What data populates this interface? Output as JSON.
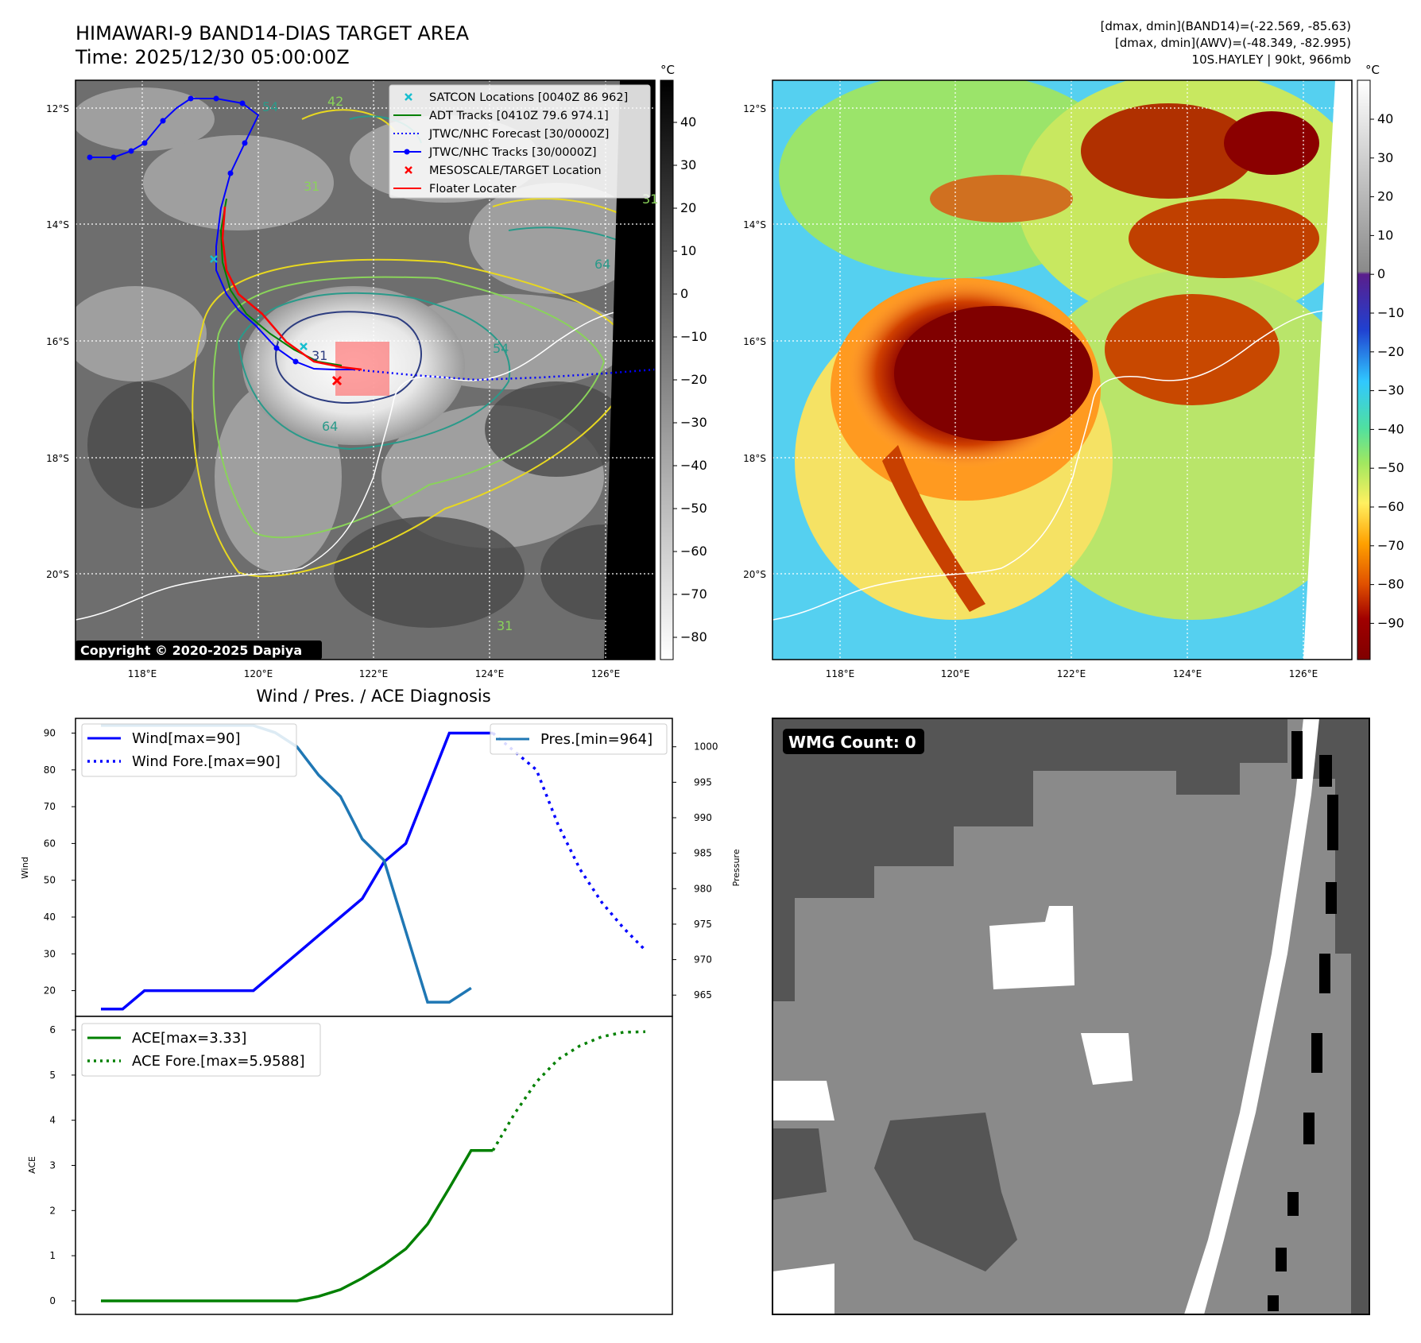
{
  "header": {
    "title": "HIMAWARI-9 BAND14-DIAS TARGET AREA",
    "time": "Time: 2025/12/30 05:00:00Z",
    "stat1": "[dmax, dmin](BAND14)=(-22.569, -85.63)",
    "stat2": "[dmax, dmin](AWV)=(-48.349, -82.995)",
    "storm": "10S.HAYLEY | 90kt, 966mb"
  },
  "map": {
    "lat_labels": [
      "12°S",
      "14°S",
      "16°S",
      "18°S",
      "20°S"
    ],
    "lon_labels": [
      "118°E",
      "120°E",
      "122°E",
      "124°E",
      "126°E"
    ],
    "copyright": "Copyright © 2020-2025 Dapiya",
    "legend": [
      {
        "label": "SATCON Locations [0040Z 86 962]",
        "kind": "x",
        "color": "#17becf"
      },
      {
        "label": "ADT Tracks [0410Z 79.6 974.1]",
        "kind": "line",
        "color": "#008000"
      },
      {
        "label": "JTWC/NHC Forecast [30/0000Z]",
        "kind": "dotted",
        "color": "#0000ff"
      },
      {
        "label": "JTWC/NHC Tracks [30/0000Z]",
        "kind": "line-dot",
        "color": "#0000ff"
      },
      {
        "label": "MESOSCALE/TARGET Location",
        "kind": "x",
        "color": "#ff0000"
      },
      {
        "label": "Floater Locater",
        "kind": "line",
        "color": "#ff0000"
      }
    ],
    "contour_labels": [
      "54",
      "42",
      "31",
      "31",
      "64",
      "64",
      "54",
      "31",
      "31"
    ]
  },
  "colorbar_gray": {
    "unit": "°C",
    "ticks": [
      "40",
      "30",
      "20",
      "10",
      "0",
      "−10",
      "−20",
      "−30",
      "−40",
      "−50",
      "−60",
      "−70",
      "−80"
    ]
  },
  "colorbar_color": {
    "unit": "°C",
    "ticks": [
      "40",
      "30",
      "20",
      "10",
      "0",
      "−10",
      "−20",
      "−30",
      "−40",
      "−50",
      "−60",
      "−70",
      "−80",
      "−90"
    ]
  },
  "diagnosis": {
    "title": "Wind / Pres. / ACE Diagnosis",
    "wind_ylabel": "Wind",
    "pres_ylabel": "Pressure",
    "ace_ylabel": "ACE",
    "wind_ticks": [
      "90",
      "80",
      "70",
      "60",
      "50",
      "40",
      "30",
      "20"
    ],
    "pres_ticks": [
      "1000",
      "995",
      "990",
      "985",
      "980",
      "975",
      "970",
      "965"
    ],
    "ace_ticks": [
      "6",
      "5",
      "4",
      "3",
      "2",
      "1",
      "0"
    ],
    "legend_wind": "Wind[max=90]",
    "legend_wind_fore": "Wind Fore.[max=90]",
    "legend_pres": "Pres.[min=964]",
    "legend_ace": "ACE[max=3.33]",
    "legend_ace_fore": "ACE Fore.[max=5.9588]"
  },
  "wmg": {
    "label": "WMG Count: 0"
  },
  "chart_data": [
    {
      "type": "line",
      "title": "Wind / Pres. / ACE Diagnosis",
      "ylabel": "Wind",
      "ylim": [
        13,
        94
      ],
      "x": [
        0,
        1,
        2,
        3,
        4,
        5,
        6,
        7,
        8,
        9,
        10,
        11,
        12,
        13,
        14,
        15,
        16,
        17,
        18,
        19,
        20,
        21,
        22,
        23,
        24,
        25
      ],
      "series": [
        {
          "name": "Wind[max=90]",
          "color": "#0000ff",
          "style": "solid",
          "x": [
            0,
            1,
            2,
            3,
            4,
            5,
            6,
            7,
            8,
            9,
            10,
            11,
            12,
            13,
            14,
            15,
            16,
            17,
            18
          ],
          "values": [
            15,
            15,
            20,
            20,
            20,
            20,
            20,
            20,
            25,
            30,
            35,
            40,
            45,
            55,
            60,
            75,
            90,
            90,
            90
          ]
        },
        {
          "name": "Wind Fore.[max=90]",
          "color": "#0000ff",
          "style": "dotted",
          "x": [
            18,
            19,
            20,
            21,
            22,
            23,
            24,
            25
          ],
          "values": [
            90,
            85,
            80,
            65,
            53,
            44,
            37,
            31
          ]
        }
      ]
    },
    {
      "type": "line",
      "ylabel": "Pressure",
      "ylim": [
        962,
        1004
      ],
      "series": [
        {
          "name": "Pres.[min=964]",
          "color": "#1f77b4",
          "style": "solid",
          "x": [
            0,
            1,
            2,
            3,
            4,
            5,
            6,
            7,
            8,
            9,
            10,
            11,
            12,
            13,
            14,
            15,
            16,
            17
          ],
          "values": [
            1003,
            1003,
            1003,
            1003,
            1003,
            1003,
            1003,
            1003,
            1002,
            1000,
            996,
            993,
            987,
            984,
            974,
            964,
            964,
            966
          ]
        }
      ]
    },
    {
      "type": "line",
      "ylabel": "ACE",
      "ylim": [
        -0.3,
        6.3
      ],
      "series": [
        {
          "name": "ACE[max=3.33]",
          "color": "#008000",
          "style": "solid",
          "x": [
            0,
            1,
            2,
            3,
            4,
            5,
            6,
            7,
            8,
            9,
            10,
            11,
            12,
            13,
            14,
            15,
            16,
            17,
            18
          ],
          "values": [
            0,
            0,
            0,
            0,
            0,
            0,
            0,
            0,
            0,
            0,
            0.1,
            0.25,
            0.5,
            0.8,
            1.15,
            1.7,
            2.5,
            3.33,
            3.33
          ]
        },
        {
          "name": "ACE Fore.[max=5.9588]",
          "color": "#008000",
          "style": "dotted",
          "x": [
            18,
            19,
            20,
            21,
            22,
            23,
            24,
            25
          ],
          "values": [
            3.33,
            4.15,
            4.85,
            5.35,
            5.65,
            5.85,
            5.95,
            5.96
          ]
        }
      ]
    }
  ]
}
